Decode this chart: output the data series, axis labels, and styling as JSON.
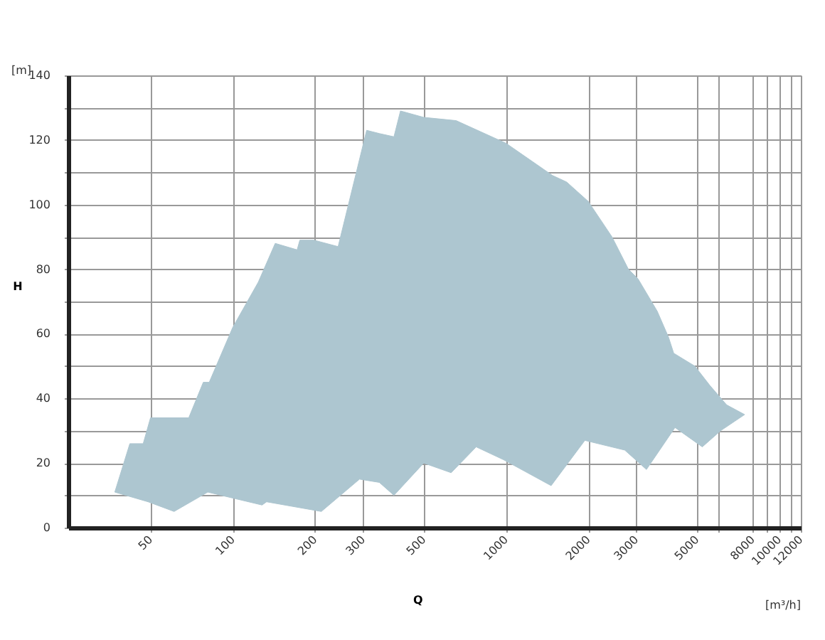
{
  "chart_data": {
    "type": "area",
    "xlabel": "Q",
    "ylabel": "H",
    "annotations": [
      "[m]",
      "[m³/h]"
    ],
    "xlim": [
      25,
      12000
    ],
    "ylim": [
      0,
      140
    ],
    "xticks": [
      50,
      100,
      200,
      300,
      500,
      1000,
      2000,
      3000,
      5000,
      {
        "value": 6000,
        "label": null
      },
      8000,
      {
        "value": 9000,
        "label": null
      },
      10000,
      {
        "value": 11000,
        "label": null
      },
      12000
    ],
    "yticks": [
      0,
      {
        "value": 10,
        "label": null
      },
      20,
      {
        "value": 30,
        "label": null
      },
      40,
      {
        "value": 50,
        "label": null
      },
      60,
      {
        "value": 70,
        "label": null
      },
      80,
      {
        "value": 90,
        "label": null
      },
      100,
      {
        "value": 110,
        "label": null
      },
      120,
      {
        "value": 130,
        "label": null
      },
      140
    ],
    "grid": true,
    "log": "x",
    "series": [
      {
        "color": "#adc6d0",
        "x": [
          37,
          42,
          47,
          50,
          69,
          78,
          82,
          100,
          124,
          143,
          172,
          176,
          198,
          243,
          309,
          344,
          389,
          411,
          500,
          657,
          1000,
          1481,
          1667,
          2000,
          2444,
          2806,
          3044,
          3578,
          3933,
          4111,
          4911,
          5577,
          6421,
          7474,
          6105,
          5231,
          4156,
          3267,
          2722,
          1944,
          1463,
          981,
          778,
          630,
          500,
          389,
          344,
          291,
          211,
          133,
          128,
          81,
          61,
          49
        ],
        "values": [
          11,
          26,
          26,
          34,
          34,
          45,
          45,
          62,
          76,
          88,
          86,
          89,
          89,
          87,
          123,
          122,
          121,
          129,
          127,
          126,
          119,
          109,
          107,
          101,
          90,
          80,
          77,
          67,
          59,
          54,
          50,
          44,
          38,
          35,
          30,
          25,
          31,
          18,
          24,
          27,
          13,
          21,
          25,
          17,
          20,
          10,
          14,
          15,
          5,
          8,
          7,
          11,
          5,
          8
        ]
      }
    ]
  }
}
